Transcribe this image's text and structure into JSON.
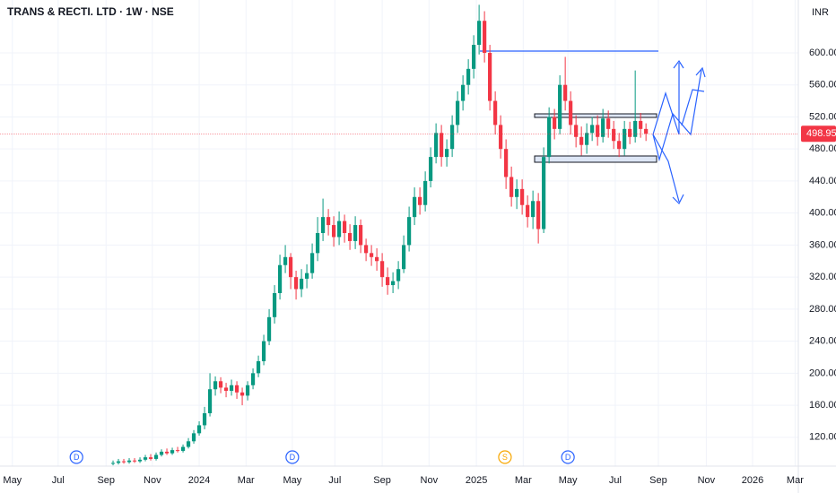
{
  "chart_data": {
    "type": "candlestick",
    "title": "TRANS & RECTI. LTD · 1W · NSE",
    "currency": "INR",
    "up_color": "#089981",
    "down_color": "#f23645",
    "last_price": 498.95,
    "ylim": [
      84,
      666
    ],
    "yticks": [
      {
        "value": 120,
        "label": "120.00"
      },
      {
        "value": 160,
        "label": "160.00"
      },
      {
        "value": 200,
        "label": "200.00"
      },
      {
        "value": 240,
        "label": "240.00"
      },
      {
        "value": 280,
        "label": "280.00"
      },
      {
        "value": 320,
        "label": "320.00"
      },
      {
        "value": 360,
        "label": "360.00"
      },
      {
        "value": 400,
        "label": "400.00"
      },
      {
        "value": 440,
        "label": "440.00"
      },
      {
        "value": 480,
        "label": "480.00"
      },
      {
        "value": 520,
        "label": "520.00"
      },
      {
        "value": 560,
        "label": "560.00"
      },
      {
        "value": 600,
        "label": "600.00"
      }
    ],
    "xlim": [
      0,
      148.3
    ],
    "xticks": [
      {
        "value": 2.3,
        "label": "May"
      },
      {
        "value": 10.8,
        "label": "Jul"
      },
      {
        "value": 19.7,
        "label": "Sep"
      },
      {
        "value": 28.3,
        "label": "Nov"
      },
      {
        "value": 37,
        "label": "2024"
      },
      {
        "value": 45.7,
        "label": "Mar"
      },
      {
        "value": 54.3,
        "label": "May"
      },
      {
        "value": 62.2,
        "label": "Jul"
      },
      {
        "value": 71,
        "label": "Sep"
      },
      {
        "value": 79.7,
        "label": "Nov"
      },
      {
        "value": 88.5,
        "label": "2025"
      },
      {
        "value": 97.2,
        "label": "Mar"
      },
      {
        "value": 105.5,
        "label": "May"
      },
      {
        "value": 114.3,
        "label": "Jul"
      },
      {
        "value": 122.3,
        "label": "Sep"
      },
      {
        "value": 131.2,
        "label": "Nov"
      },
      {
        "value": 139.8,
        "label": "2026"
      },
      {
        "value": 147.7,
        "label": "Mar"
      }
    ],
    "events": [
      {
        "label": "D",
        "x": 14.2
      },
      {
        "label": "D",
        "x": 54.3
      },
      {
        "label": "S",
        "x": 93.8
      },
      {
        "label": "D",
        "x": 105.5
      }
    ],
    "x": [
      21,
      22,
      23,
      24,
      25,
      26,
      27,
      28,
      29,
      30,
      31,
      32,
      33,
      34,
      35,
      36,
      37,
      38,
      39,
      40,
      41,
      42,
      43,
      44,
      45,
      46,
      47,
      48,
      49,
      50,
      51,
      52,
      53,
      54,
      55,
      56,
      57,
      58,
      59,
      60,
      61,
      62,
      63,
      64,
      65,
      66,
      67,
      68,
      69,
      70,
      71,
      72,
      73,
      74,
      75,
      76,
      77,
      78,
      79,
      80,
      81,
      82,
      83,
      84,
      85,
      86,
      87,
      88,
      89,
      90,
      91,
      92,
      93,
      94,
      95,
      96,
      97,
      98,
      99,
      100,
      101,
      102,
      103,
      104,
      105,
      106,
      107,
      108,
      109,
      110,
      111,
      112,
      113,
      114,
      115,
      116,
      117,
      118,
      119,
      120
    ],
    "open": [
      87,
      88,
      90,
      89,
      91,
      90,
      92,
      95,
      93,
      98,
      102,
      100,
      104,
      103,
      108,
      115,
      125,
      135,
      150,
      180,
      190,
      182,
      178,
      185,
      176,
      172,
      185,
      200,
      215,
      240,
      270,
      300,
      335,
      345,
      320,
      305,
      318,
      325,
      350,
      375,
      395,
      385,
      370,
      390,
      375,
      365,
      385,
      360,
      350,
      345,
      340,
      320,
      310,
      315,
      330,
      360,
      395,
      420,
      410,
      440,
      470,
      500,
      470,
      480,
      510,
      540,
      560,
      580,
      610,
      640,
      600,
      540,
      510,
      480,
      445,
      420,
      430,
      410,
      395,
      415,
      380,
      470,
      520,
      505,
      560,
      540,
      510,
      495,
      485,
      500,
      510,
      495,
      518,
      505,
      490,
      480,
      505,
      495,
      515,
      505
    ],
    "high": [
      91,
      93,
      93,
      94,
      94,
      95,
      98,
      99,
      101,
      105,
      106,
      107,
      108,
      111,
      119,
      129,
      140,
      158,
      200,
      196,
      195,
      188,
      192,
      190,
      182,
      190,
      206,
      222,
      248,
      280,
      310,
      348,
      360,
      350,
      328,
      330,
      336,
      362,
      395,
      418,
      405,
      396,
      402,
      398,
      386,
      396,
      392,
      368,
      360,
      356,
      350,
      332,
      326,
      340,
      372,
      408,
      432,
      432,
      452,
      482,
      512,
      510,
      492,
      522,
      552,
      572,
      592,
      622,
      660,
      652,
      610,
      552,
      522,
      492,
      458,
      442,
      442,
      422,
      428,
      425,
      482,
      532,
      530,
      572,
      595,
      552,
      522,
      508,
      512,
      520,
      522,
      530,
      528,
      515,
      500,
      515,
      514,
      578,
      525,
      512
    ],
    "low": [
      85,
      86,
      87,
      87,
      88,
      88,
      90,
      91,
      91,
      96,
      98,
      98,
      101,
      101,
      106,
      112,
      122,
      130,
      146,
      172,
      175,
      170,
      172,
      168,
      160,
      166,
      180,
      195,
      210,
      235,
      262,
      292,
      325,
      305,
      292,
      295,
      306,
      318,
      340,
      365,
      372,
      358,
      360,
      363,
      354,
      355,
      350,
      340,
      334,
      328,
      308,
      298,
      300,
      305,
      325,
      352,
      385,
      398,
      402,
      432,
      462,
      458,
      458,
      470,
      500,
      528,
      548,
      568,
      598,
      588,
      528,
      498,
      468,
      430,
      408,
      405,
      398,
      382,
      380,
      362,
      375,
      462,
      492,
      498,
      528,
      498,
      482,
      472,
      474,
      490,
      484,
      488,
      494,
      480,
      470,
      472,
      486,
      488,
      494,
      490
    ],
    "close": [
      88,
      90,
      89,
      91,
      90,
      92,
      95,
      93,
      98,
      102,
      100,
      104,
      103,
      108,
      115,
      125,
      135,
      150,
      180,
      190,
      182,
      178,
      185,
      176,
      172,
      185,
      200,
      215,
      240,
      270,
      300,
      335,
      345,
      320,
      305,
      318,
      325,
      350,
      375,
      395,
      385,
      370,
      390,
      375,
      365,
      385,
      360,
      350,
      345,
      340,
      320,
      310,
      315,
      330,
      360,
      395,
      420,
      410,
      440,
      470,
      500,
      470,
      480,
      510,
      540,
      560,
      580,
      610,
      640,
      600,
      540,
      510,
      480,
      445,
      420,
      430,
      410,
      395,
      415,
      380,
      470,
      520,
      505,
      560,
      540,
      510,
      495,
      485,
      500,
      510,
      495,
      518,
      505,
      490,
      480,
      505,
      495,
      515,
      505,
      499
    ]
  }
}
